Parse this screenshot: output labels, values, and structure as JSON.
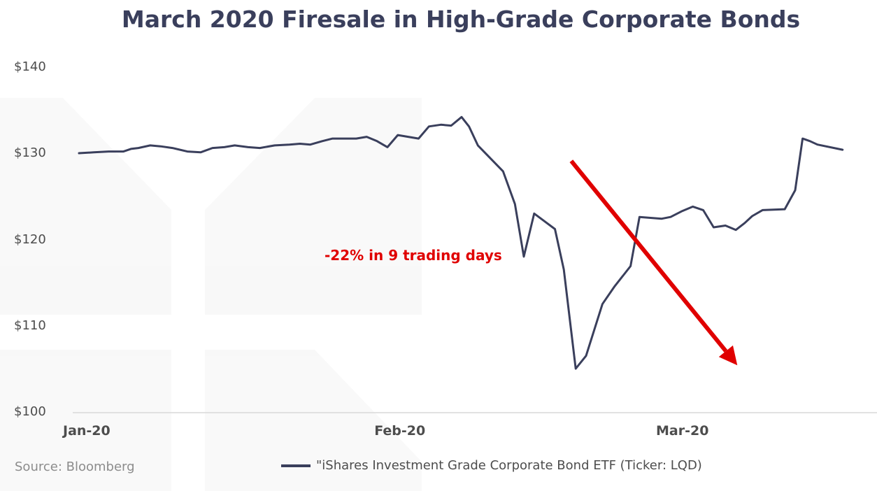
{
  "chart_data": {
    "type": "line",
    "title": "March 2020 Firesale in High-Grade Corporate Bonds",
    "xlabel": "",
    "ylabel": "",
    "ylim": [
      100,
      140
    ],
    "yticks": [
      "$140",
      "$130",
      "$120",
      "$110",
      "$100"
    ],
    "ytick_values": [
      140,
      130,
      120,
      110,
      100
    ],
    "xticks": [
      "Jan-20",
      "Feb-20",
      "Mar-20"
    ],
    "xtick_values": [
      0,
      21,
      40
    ],
    "grid": false,
    "legend_position": "bottom",
    "series": [
      {
        "name": "\"iShares Investment Grade Corporate Bond ETF (Ticker: LQD)",
        "color": "#3a3f5c",
        "x": [
          0,
          1,
          2,
          3,
          3.5,
          4,
          4.8,
          5.5,
          6.3,
          7.3,
          8.2,
          9,
          9.8,
          10.5,
          11.4,
          12.2,
          13.2,
          14.2,
          14.9,
          15.6,
          16.4,
          17.1,
          17.9,
          18.7,
          19.4,
          20.1,
          20.8,
          21.5,
          22.2,
          22.9,
          23.6,
          24.4,
          25.1,
          25.8,
          26.3,
          26.9,
          28.6,
          29.4,
          30,
          30.7,
          31.4,
          32.1,
          32.7,
          33.5,
          34.2,
          35.3,
          36.1,
          37.2,
          37.8,
          39.3,
          39.9,
          40.7,
          41.4,
          42.1,
          42.8,
          43.6,
          44.3,
          44.9,
          45.4,
          46.1,
          47.6,
          48.3,
          48.8,
          49.3,
          49.8,
          51.5
        ],
        "values": [
          130.1,
          130.2,
          130.3,
          130.3,
          130.6,
          130.7,
          131,
          130.9,
          130.7,
          130.3,
          130.2,
          130.7,
          130.8,
          131,
          130.8,
          130.7,
          131,
          131.1,
          131.2,
          131.1,
          131.5,
          131.8,
          131.8,
          131.8,
          132,
          131.5,
          130.8,
          132.2,
          132,
          131.8,
          133.2,
          133.4,
          133.3,
          134.3,
          133.2,
          131,
          128,
          124.2,
          118.1,
          123.1,
          122.2,
          121.3,
          116.6,
          105.1,
          106.6,
          112.6,
          114.6,
          117,
          122.7,
          122.5,
          122.7,
          123.4,
          123.9,
          123.5,
          121.5,
          121.7,
          121.2,
          122,
          122.8,
          123.5,
          123.6,
          125.8,
          131.8,
          131.5,
          131.1,
          130.5
        ]
      }
    ],
    "annotations": [
      {
        "text": "-22% in 9 trading days",
        "color": "#e00000",
        "arrow_from": [
          33.2,
          129.2
        ],
        "arrow_to": [
          44.4,
          105.5
        ]
      }
    ]
  },
  "source": "Source: Bloomberg",
  "legend_label": "\"iShares Investment Grade Corporate Bond ETF (Ticker: LQD)",
  "colors": {
    "title": "#3a3f5c",
    "line": "#3a3f5c",
    "annotation": "#e00000",
    "axis": "#d9d9d9"
  }
}
